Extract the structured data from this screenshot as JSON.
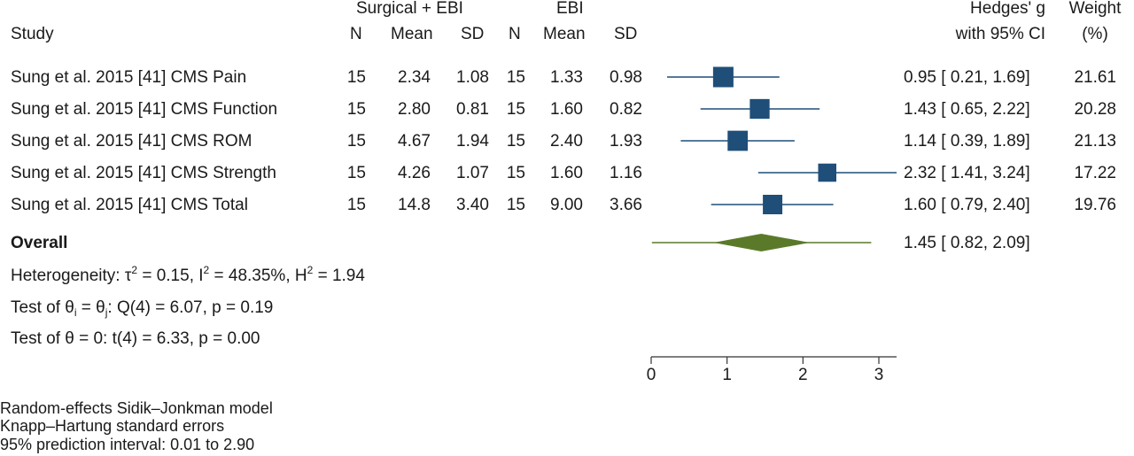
{
  "header": {
    "group1": "Surgical + EBI",
    "group2": "EBI",
    "study": "Study",
    "n1": "N",
    "mean1": "Mean",
    "sd1": "SD",
    "n2": "N",
    "mean2": "Mean",
    "sd2": "SD",
    "effect_line1": "Hedges' g",
    "effect_line2": "with 95% CI",
    "weight_line1": "Weight",
    "weight_line2": "(%)"
  },
  "chart_data": {
    "type": "forest",
    "xlim": [
      0,
      3
    ],
    "xticks": [
      0,
      1,
      2,
      3
    ],
    "colors": {
      "marker": "#1f4e79",
      "ci_line": "#1f4e79",
      "diamond": "#5a7a2a",
      "prediction_line": "#5a7a2a",
      "axis": "#333333"
    },
    "studies": [
      {
        "label": "Sung et al. 2015 [41] CMS Pain",
        "n1": "15",
        "mean1": "2.34",
        "sd1": "1.08",
        "n2": "15",
        "mean2": "1.33",
        "sd2": "0.98",
        "g": 0.95,
        "lo": 0.21,
        "hi": 1.69,
        "ci_text": "0.95 [ 0.21,  1.69]",
        "weight": "21.61"
      },
      {
        "label": "Sung et al. 2015 [41] CMS Function",
        "n1": "15",
        "mean1": "2.80",
        "sd1": "0.81",
        "n2": "15",
        "mean2": "1.60",
        "sd2": "0.82",
        "g": 1.43,
        "lo": 0.65,
        "hi": 2.22,
        "ci_text": "1.43 [ 0.65,  2.22]",
        "weight": "20.28"
      },
      {
        "label": "Sung et al. 2015 [41] CMS ROM",
        "n1": "15",
        "mean1": "4.67",
        "sd1": "1.94",
        "n2": "15",
        "mean2": "2.40",
        "sd2": "1.93",
        "g": 1.14,
        "lo": 0.39,
        "hi": 1.89,
        "ci_text": "1.14 [ 0.39,  1.89]",
        "weight": "21.13"
      },
      {
        "label": "Sung et al. 2015 [41] CMS Strength",
        "n1": "15",
        "mean1": "4.26",
        "sd1": "1.07",
        "n2": "15",
        "mean2": "1.60",
        "sd2": "1.16",
        "g": 2.32,
        "lo": 1.41,
        "hi": 3.24,
        "ci_text": "2.32 [ 1.41,  3.24]",
        "weight": "17.22"
      },
      {
        "label": "Sung et al. 2015 [41] CMS Total",
        "n1": "15",
        "mean1": "14.8",
        "sd1": "3.40",
        "n2": "15",
        "mean2": "9.00",
        "sd2": "3.66",
        "g": 1.6,
        "lo": 0.79,
        "hi": 2.4,
        "ci_text": "1.60 [ 0.79,  2.40]",
        "weight": "19.76"
      }
    ],
    "overall": {
      "label": "Overall",
      "g": 1.45,
      "lo": 0.82,
      "hi": 2.09,
      "pi_lo": 0.01,
      "pi_hi": 2.9,
      "ci_text": "1.45 [ 0.82,  2.09]"
    }
  },
  "stats": {
    "het_prefix": "Heterogeneity: ",
    "tau": "τ",
    "het_tau_val": " = 0.15, I",
    "het_i_val": " = 48.35%, H",
    "het_h_val": " = 1.94",
    "sup2": "2",
    "test1_prefix": "Test of ",
    "theta": "θ",
    "sub_i": "i",
    "sub_j": "j",
    "eq": " = ",
    "test1_suffix": ": Q(4) = 6.07, p = 0.19",
    "test2_prefix": "Test of ",
    "test2_suffix": " = 0: t(4) = 6.33, p = 0.00"
  },
  "footnotes": {
    "model": "Random-effects Sidik–Jonkman model",
    "se": "Knapp–Hartung standard errors",
    "pi": "95% prediction interval: 0.01 to 2.90"
  }
}
